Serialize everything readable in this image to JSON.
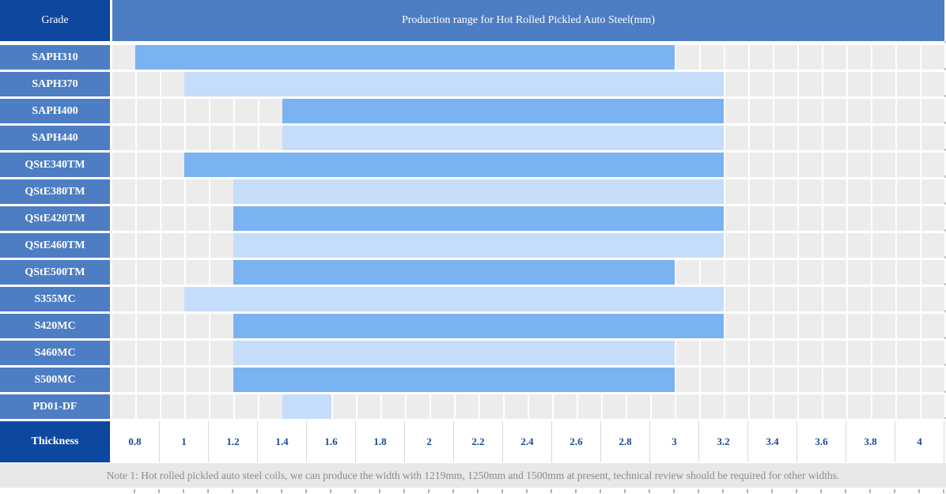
{
  "header": {
    "grade_column_label": "Grade"
  },
  "chart_data": {
    "type": "bar",
    "variant": "horizontal-range",
    "title": "Production range for Hot Rolled Pickled Auto Steel(mm)",
    "xlabel": "Thickness",
    "unit": "mm",
    "xlim": [
      0.8,
      4.0
    ],
    "xtick_step": 0.2,
    "xticks": [
      "0.8",
      "1",
      "1.2",
      "1.4",
      "1.6",
      "1.8",
      "2",
      "2.2",
      "2.4",
      "2.6",
      "2.8",
      "3",
      "3.2",
      "3.4",
      "3.6",
      "3.8",
      "4"
    ],
    "categories": [
      "SAPH310",
      "SAPH370",
      "SAPH400",
      "SAPH440",
      "QStE340TM",
      "QStE380TM",
      "QStE420TM",
      "QStE460TM",
      "QStE500TM",
      "S355MC",
      "S420MC",
      "S460MC",
      "S500MC",
      "PD01-DF"
    ],
    "series": [
      {
        "name": "SAPH310",
        "range": [
          0.8,
          3.0
        ],
        "shade": "medium"
      },
      {
        "name": "SAPH370",
        "range": [
          1.0,
          3.2
        ],
        "shade": "light"
      },
      {
        "name": "SAPH400",
        "range": [
          1.4,
          3.2
        ],
        "shade": "medium"
      },
      {
        "name": "SAPH440",
        "range": [
          1.4,
          3.2
        ],
        "shade": "light"
      },
      {
        "name": "QStE340TM",
        "range": [
          1.0,
          3.2
        ],
        "shade": "medium"
      },
      {
        "name": "QStE380TM",
        "range": [
          1.2,
          3.2
        ],
        "shade": "light"
      },
      {
        "name": "QStE420TM",
        "range": [
          1.2,
          3.2
        ],
        "shade": "medium"
      },
      {
        "name": "QStE460TM",
        "range": [
          1.2,
          3.2
        ],
        "shade": "light"
      },
      {
        "name": "QStE500TM",
        "range": [
          1.2,
          3.0
        ],
        "shade": "medium"
      },
      {
        "name": "S355MC",
        "range": [
          1.0,
          3.2
        ],
        "shade": "light"
      },
      {
        "name": "S420MC",
        "range": [
          1.2,
          3.2
        ],
        "shade": "medium"
      },
      {
        "name": "S460MC",
        "range": [
          1.2,
          3.0
        ],
        "shade": "light"
      },
      {
        "name": "S500MC",
        "range": [
          1.2,
          3.0
        ],
        "shade": "medium"
      },
      {
        "name": "PD01-DF",
        "range": [
          1.4,
          1.6
        ],
        "shade": "light"
      }
    ],
    "legend": "none",
    "grid": true
  },
  "note": {
    "text": "Note 1: Hot rolled pickled auto steel coils, we can produce the width with 1219mm, 1250mm and 1500mm at present, technical review should be required for other widths."
  },
  "colors": {
    "header_dark_blue": "#0d47a0",
    "row_label_blue": "#4d7dc3",
    "bar_medium_blue": "#7ab2f2",
    "bar_light_blue": "#c5ddfa",
    "grid_cell_gray": "#ececec",
    "tick_text_blue": "#1a4a96",
    "note_text_gray": "#8c8c8c",
    "note_bg_gray": "#e8e8e8"
  }
}
